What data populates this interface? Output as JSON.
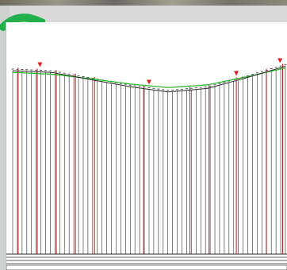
{
  "screen": {
    "kind": "profile-drawing-screenshot",
    "colors": {
      "background": "#d9d9d9",
      "paper": "#ffffff",
      "ground_line": "#2a2a2a",
      "design_line": "#2db82d",
      "pole": "#c22a2a",
      "pile": "#2a2a2a",
      "accent_green": "#22b04b",
      "marker": "#e0201c"
    },
    "icons": [
      "survey-marker-icon"
    ]
  },
  "profile": {
    "note": "",
    "ground_elevation": [
      0.92,
      0.9,
      0.82,
      0.74,
      0.68,
      0.72,
      0.84,
      0.97
    ],
    "design_elevation": [
      0.9,
      0.88,
      0.83,
      0.77,
      0.73,
      0.76,
      0.85,
      0.95
    ],
    "pole_stations": [
      0.02,
      0.09,
      0.16,
      0.23,
      0.3,
      0.48,
      0.65,
      0.72,
      0.82,
      0.93,
      0.99
    ],
    "marker_stations": [
      0.1,
      0.5,
      0.82,
      0.98
    ]
  }
}
